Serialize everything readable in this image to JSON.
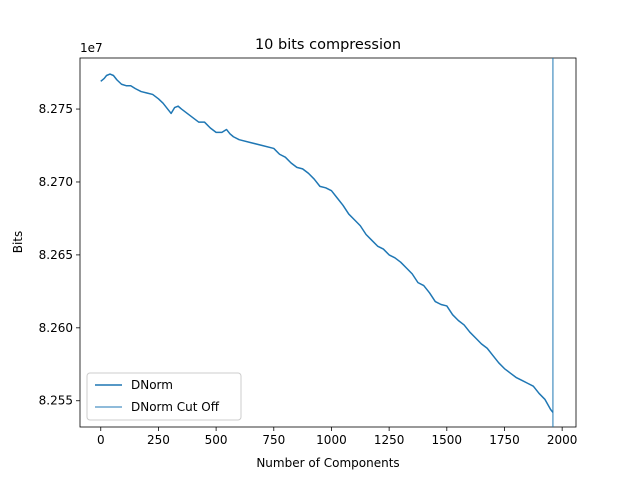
{
  "chart_data": {
    "type": "line",
    "title": "10 bits compression",
    "xlabel": "Number of Components",
    "ylabel": "Bits",
    "y_offset_label": "1e7",
    "xlim": [
      -90,
      2060
    ],
    "ylim": [
      8.2532,
      8.2785
    ],
    "x_ticks": [
      0,
      250,
      500,
      750,
      1000,
      1250,
      1500,
      1750,
      2000
    ],
    "y_ticks": [
      8.255,
      8.26,
      8.265,
      8.27,
      8.275
    ],
    "y_tick_labels": [
      "8.255",
      "8.260",
      "8.265",
      "8.270",
      "8.275"
    ],
    "grid": false,
    "legend_position": "lower-left",
    "series": [
      {
        "name": "DNorm",
        "color": "#1f77b4",
        "points": [
          [
            0,
            8.2769
          ],
          [
            15,
            8.2771
          ],
          [
            25,
            8.2773
          ],
          [
            40,
            8.2774
          ],
          [
            55,
            8.2773
          ],
          [
            70,
            8.277
          ],
          [
            90,
            8.2767
          ],
          [
            110,
            8.2766
          ],
          [
            130,
            8.2766
          ],
          [
            150,
            8.2764
          ],
          [
            175,
            8.2762
          ],
          [
            200,
            8.2761
          ],
          [
            225,
            8.276
          ],
          [
            250,
            8.2757
          ],
          [
            270,
            8.2754
          ],
          [
            290,
            8.275
          ],
          [
            305,
            8.2747
          ],
          [
            320,
            8.2751
          ],
          [
            335,
            8.2752
          ],
          [
            350,
            8.275
          ],
          [
            375,
            8.2747
          ],
          [
            400,
            8.2744
          ],
          [
            425,
            8.2741
          ],
          [
            450,
            8.2741
          ],
          [
            475,
            8.2737
          ],
          [
            500,
            8.2734
          ],
          [
            525,
            8.2734
          ],
          [
            545,
            8.2736
          ],
          [
            560,
            8.2733
          ],
          [
            575,
            8.2731
          ],
          [
            600,
            8.2729
          ],
          [
            650,
            8.2727
          ],
          [
            700,
            8.2725
          ],
          [
            750,
            8.2723
          ],
          [
            775,
            8.2719
          ],
          [
            800,
            8.2717
          ],
          [
            825,
            8.2713
          ],
          [
            850,
            8.271
          ],
          [
            875,
            8.2709
          ],
          [
            900,
            8.2706
          ],
          [
            925,
            8.2702
          ],
          [
            950,
            8.2697
          ],
          [
            975,
            8.2696
          ],
          [
            1000,
            8.2694
          ],
          [
            1025,
            8.2689
          ],
          [
            1050,
            8.2684
          ],
          [
            1075,
            8.2678
          ],
          [
            1100,
            8.2674
          ],
          [
            1125,
            8.267
          ],
          [
            1150,
            8.2664
          ],
          [
            1175,
            8.266
          ],
          [
            1200,
            8.2656
          ],
          [
            1225,
            8.2654
          ],
          [
            1250,
            8.265
          ],
          [
            1275,
            8.2648
          ],
          [
            1300,
            8.2645
          ],
          [
            1325,
            8.2641
          ],
          [
            1350,
            8.2637
          ],
          [
            1375,
            8.2631
          ],
          [
            1400,
            8.2629
          ],
          [
            1425,
            8.2624
          ],
          [
            1450,
            8.2618
          ],
          [
            1475,
            8.2616
          ],
          [
            1500,
            8.2615
          ],
          [
            1525,
            8.2609
          ],
          [
            1550,
            8.2605
          ],
          [
            1575,
            8.2602
          ],
          [
            1600,
            8.2597
          ],
          [
            1625,
            8.2593
          ],
          [
            1650,
            8.2589
          ],
          [
            1675,
            8.2586
          ],
          [
            1700,
            8.2581
          ],
          [
            1725,
            8.2576
          ],
          [
            1750,
            8.2572
          ],
          [
            1775,
            8.2569
          ],
          [
            1800,
            8.2566
          ],
          [
            1825,
            8.2564
          ],
          [
            1850,
            8.2562
          ],
          [
            1875,
            8.256
          ],
          [
            1900,
            8.2555
          ],
          [
            1925,
            8.2551
          ],
          [
            1950,
            8.2544
          ],
          [
            1960,
            8.2542
          ]
        ]
      },
      {
        "name": "DNorm Cut Off",
        "color": "#1f77b4",
        "type": "vline",
        "x": 1960
      }
    ]
  }
}
